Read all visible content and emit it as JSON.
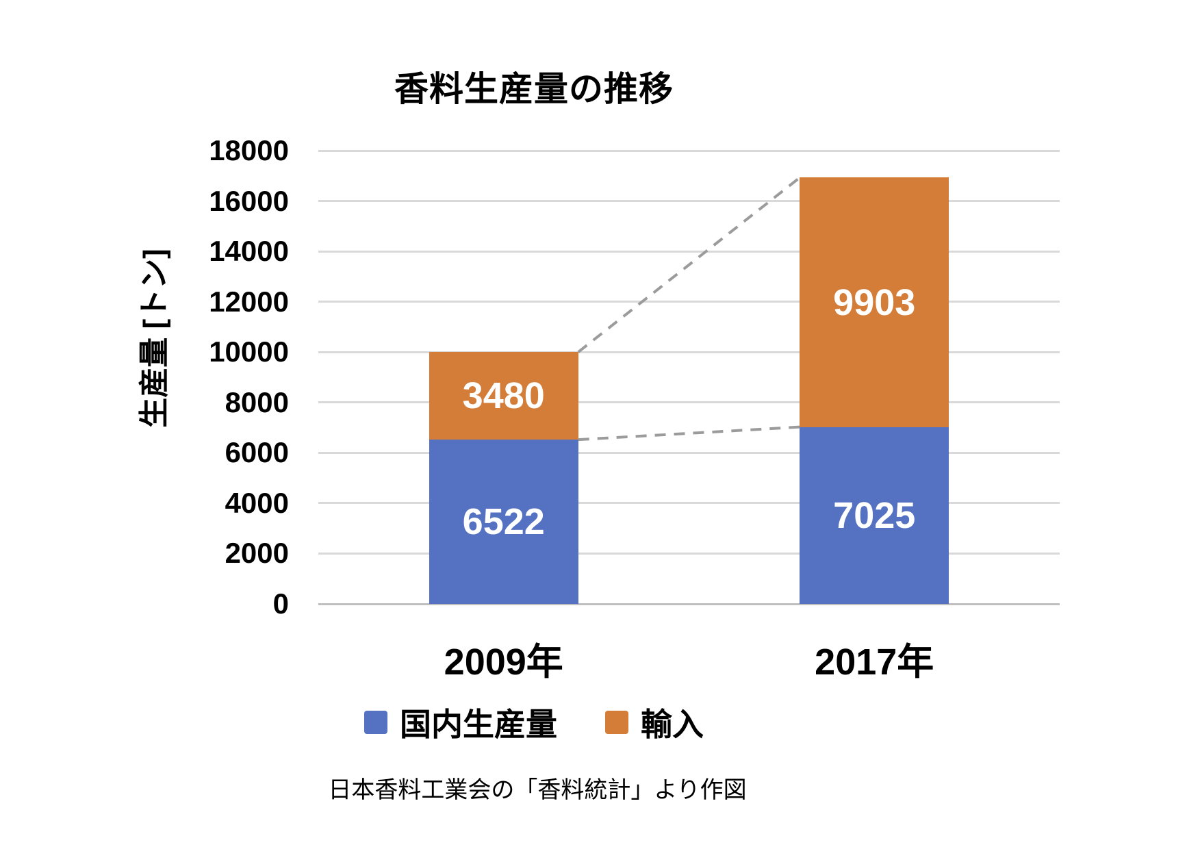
{
  "title": "香料生産量の推移",
  "caption": "日本香料工業会の「香料統計」より作図",
  "colors": {
    "domestic_blue": "#5571C2",
    "import_orange": "#D47D39",
    "gridline": "#D9D9D9",
    "axis_line": "#BFBFBF",
    "dashed_connector": "#9B9B9B",
    "bar_value_text": "#FFFFFF",
    "text": "#000000",
    "background": "#FFFFFF"
  },
  "chart_data": {
    "type": "bar",
    "stacked": true,
    "title": "香料生産量の推移",
    "xlabel": "",
    "ylabel": "生産量 [トン]",
    "categories": [
      "2009年",
      "2017年"
    ],
    "series": [
      {
        "name": "国内生産量",
        "color_key": "domestic_blue",
        "values": [
          6522,
          7025
        ]
      },
      {
        "name": "輸入",
        "color_key": "import_orange",
        "values": [
          3480,
          9903
        ]
      }
    ],
    "totals": [
      10002,
      16928
    ],
    "ylim": [
      0,
      18000
    ],
    "yticks": [
      0,
      2000,
      4000,
      6000,
      8000,
      10000,
      12000,
      14000,
      16000,
      18000
    ],
    "grid": true,
    "legend_position": "bottom",
    "legend_entries": [
      "国内生産量",
      "輸入"
    ],
    "annotations": [
      "dashed line connecting top of 2009 total to top of 2017 total",
      "dashed line connecting top of 2009 domestic segment to top of 2017 domestic segment"
    ]
  }
}
